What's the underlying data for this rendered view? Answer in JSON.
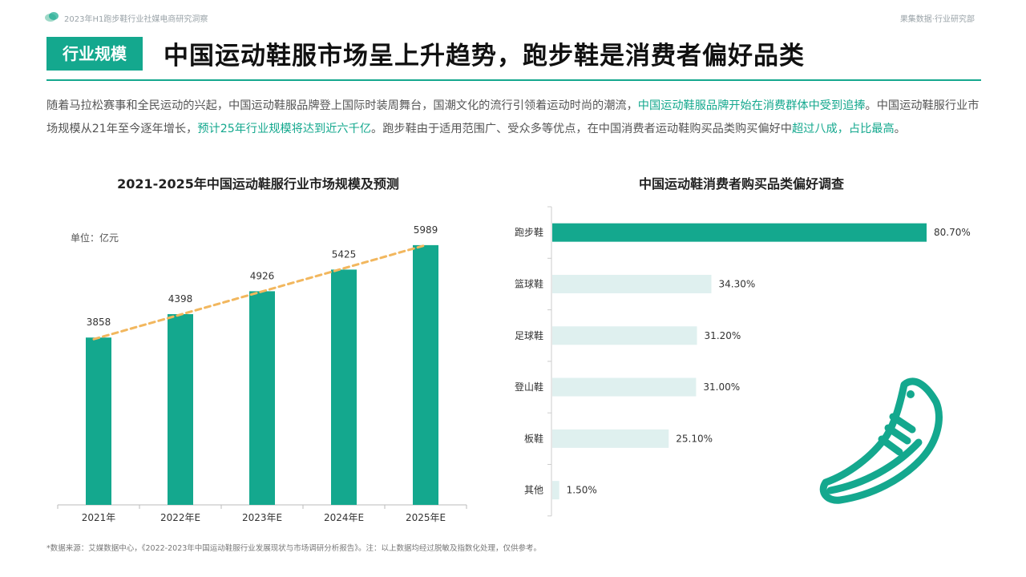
{
  "header": {
    "report_title": "2023年H1跑步鞋行业社媒电商研究洞察",
    "org": "果集数据·行业研究部"
  },
  "tag": "行业规模",
  "title": "中国运动鞋服市场呈上升趋势，跑步鞋是消费者偏好品类",
  "desc": {
    "p1": "随着马拉松赛事和全民运动的兴起，中国运动鞋服品牌登上国际时装周舞台，国潮文化的流行引领着运动时尚的潮流，",
    "h1": "中国运动鞋服品牌开始在消费群体中受到追捧",
    "p2": "。中国运动鞋服行业市场规模从21年至今逐年增长，",
    "h2": "预计25年行业规模将达到近六千亿",
    "p3": "。跑步鞋由于适用范围广、受众多等优点，在中国消费者运动鞋购买品类购买偏好中",
    "h3": "超过八成，占比最高",
    "p4": "。"
  },
  "source": "*数据来源：艾媒数据中心，《2022-2023年中国运动鞋服行业发展现状与市场调研分析报告》。注：以上数据均经过脱敏及指数化处理，仅供参考。",
  "colors": {
    "accent": "#14a88e",
    "light_bar": "#dff0ef",
    "trend": "#f2b75e"
  },
  "chart_data": [
    {
      "type": "bar",
      "title": "2021-2025年中国运动鞋服行业市场规模及预测",
      "unit_label": "单位：亿元",
      "categories": [
        "2021年",
        "2022年E",
        "2023年E",
        "2024年E",
        "2025年E"
      ],
      "values": [
        3858,
        4398,
        4926,
        5425,
        5989
      ],
      "trend_line": true,
      "ylim": [
        0,
        6800
      ]
    },
    {
      "type": "bar",
      "orientation": "horizontal",
      "title": "中国运动鞋消费者购买品类偏好调查",
      "categories": [
        "跑步鞋",
        "篮球鞋",
        "足球鞋",
        "登山鞋",
        "板鞋",
        "其他"
      ],
      "values": [
        80.7,
        34.3,
        31.2,
        31.0,
        25.1,
        1.5
      ],
      "value_labels": [
        "80.70%",
        "34.30%",
        "31.20%",
        "31.00%",
        "25.10%",
        "1.50%"
      ],
      "highlight_index": 0,
      "xlim": [
        0,
        100
      ]
    }
  ]
}
